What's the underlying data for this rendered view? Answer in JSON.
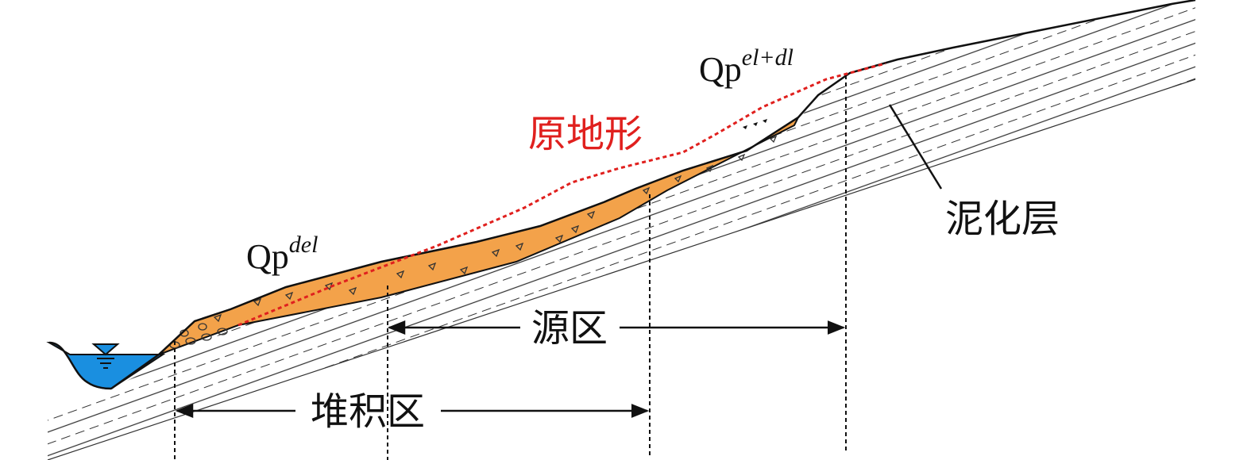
{
  "labels": {
    "qp_del": {
      "main": "Qp",
      "sup": "del"
    },
    "qp_eldl": {
      "main": "Qp",
      "sup": "el+dl"
    },
    "original_terrain": "原地形",
    "mud_layer": "泥化层",
    "source_zone": "源区",
    "deposit_zone": "堆积区"
  }
}
